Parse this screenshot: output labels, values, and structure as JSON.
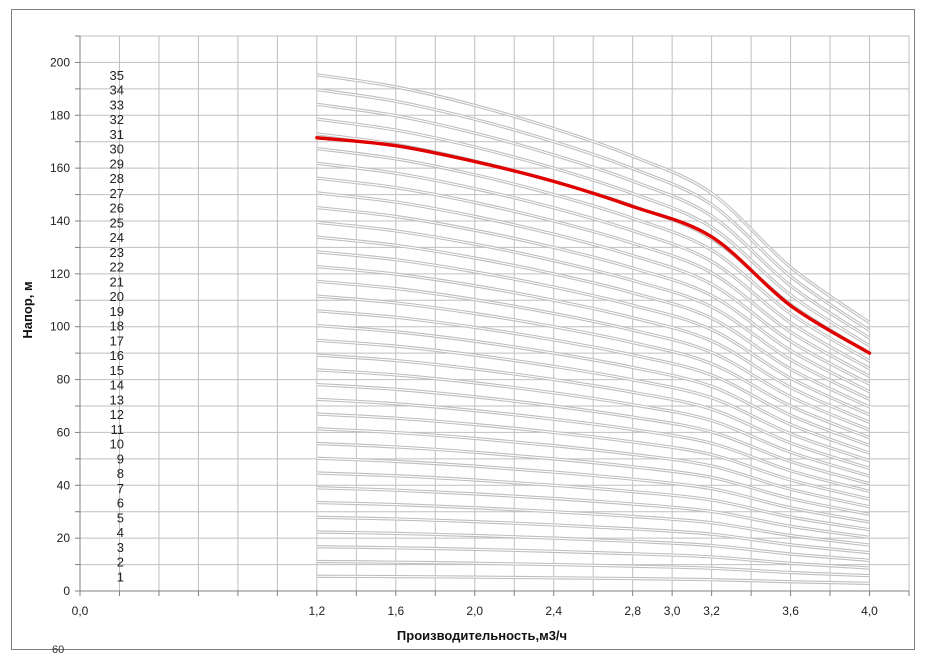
{
  "chart_data": {
    "type": "line",
    "title": "",
    "xlabel": "Производительность,м3/ч",
    "ylabel": "Напор, м",
    "xlim": [
      0.0,
      4.2
    ],
    "ylim": [
      0,
      210
    ],
    "x_ticks": [
      "0,0",
      "1,2",
      "1,6",
      "2,0",
      "2,4",
      "2,8",
      "3,0",
      "3,2",
      "3,6",
      "4,0"
    ],
    "x_tick_values": [
      0.0,
      1.2,
      1.6,
      2.0,
      2.4,
      2.8,
      3.0,
      3.2,
      3.6,
      4.0
    ],
    "y_ticks": [
      "0",
      "20",
      "40",
      "60",
      "80",
      "100",
      "120",
      "140",
      "160",
      "180",
      "200"
    ],
    "y_tick_values": [
      0,
      20,
      40,
      60,
      80,
      100,
      120,
      140,
      160,
      180,
      200
    ],
    "grid": true,
    "flow": [
      1.2,
      1.6,
      2.0,
      2.4,
      2.8,
      3.2,
      3.6,
      4.0
    ],
    "head_per_stage": [
      5.58,
      5.45,
      5.25,
      5.0,
      4.7,
      4.3,
      3.5,
      2.9
    ],
    "stages": [
      "1",
      "2",
      "3",
      "4",
      "5",
      "6",
      "7",
      "8",
      "9",
      "10",
      "11",
      "12",
      "13",
      "14",
      "15",
      "16",
      "17",
      "18",
      "19",
      "20",
      "21",
      "22",
      "23",
      "24",
      "25",
      "26",
      "27",
      "28",
      "29",
      "30",
      "31",
      "32",
      "33",
      "34",
      "35"
    ],
    "highlight": {
      "stage": "31",
      "color": "#e00000",
      "x": [
        1.2,
        1.6,
        2.0,
        2.4,
        2.8,
        3.2,
        3.6,
        4.0
      ],
      "y": [
        171.5,
        168.5,
        162.5,
        155,
        145.5,
        134,
        108,
        90
      ]
    },
    "curve_color": "#bdbdbd"
  },
  "partial_text": "60"
}
